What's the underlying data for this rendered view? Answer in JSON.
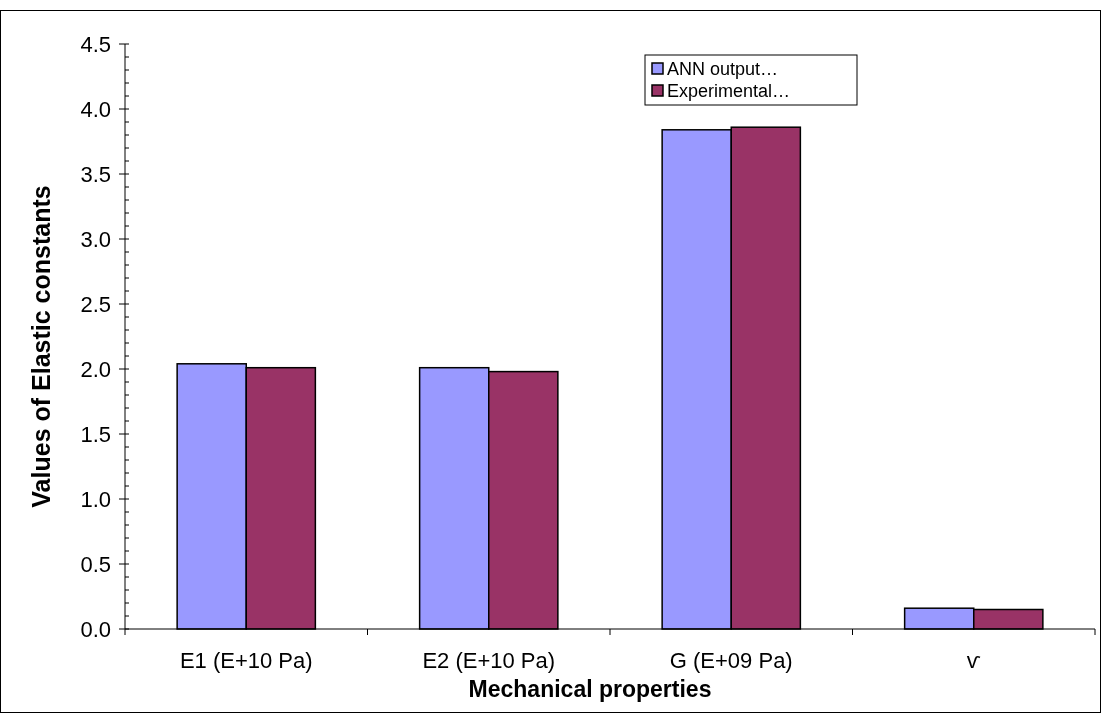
{
  "chart_data": {
    "type": "bar",
    "xlabel": "Mechanical properties",
    "ylabel": "Values of Elastic constants",
    "categories": [
      "E1  (E+10 Pa)",
      "E2  (E+10 Pa)",
      "G  (E+09 Pa)",
      "ѵ"
    ],
    "series": [
      {
        "name": "ANN output…",
        "color": "#9999ff",
        "values": [
          2.04,
          2.01,
          3.84,
          0.16
        ]
      },
      {
        "name": "Experimental…",
        "color": "#993366",
        "values": [
          2.01,
          1.98,
          3.86,
          0.15
        ]
      }
    ],
    "ylim": [
      0,
      4.5
    ],
    "yticks": [
      {
        "value": 0,
        "label": "0.0"
      },
      0.5,
      {
        "value": 1,
        "label": "1.0"
      },
      1.5,
      {
        "value": 2,
        "label": "2.0"
      },
      2.5,
      {
        "value": 3,
        "label": "3.0"
      },
      3.5,
      {
        "value": 4,
        "label": "4.0"
      },
      4.5
    ],
    "legend": "top right",
    "grid": false
  }
}
